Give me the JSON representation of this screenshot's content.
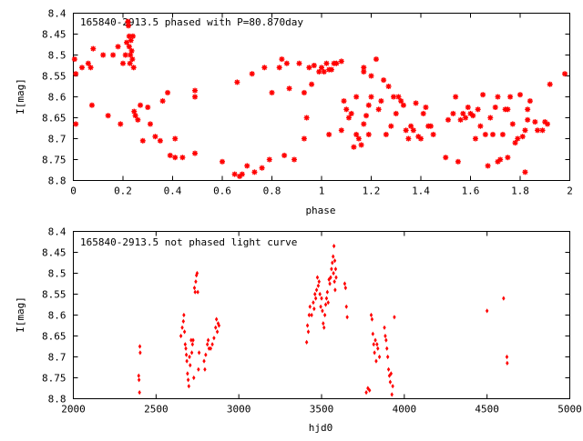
{
  "colors": {
    "points": "#ff0000",
    "axes": "#000000",
    "background": "#ffffff"
  },
  "chart_data": [
    {
      "type": "scatter",
      "title": "165840-2913.5 phased with P=80.870day",
      "xlabel": "phase",
      "ylabel": "I[mag]",
      "xlim": [
        0,
        2
      ],
      "ylim": [
        8.4,
        8.8
      ],
      "y_inverted": true,
      "grid": false,
      "xticks": [
        "0",
        "0.2",
        "0.4",
        "0.6",
        "0.8",
        "1",
        "1.2",
        "1.4",
        "1.6",
        "1.8",
        "2"
      ],
      "yticks": [
        "8.4",
        "8.45",
        "8.5",
        "8.55",
        "8.6",
        "8.65",
        "8.7",
        "8.75",
        "8.8"
      ],
      "marker": "star",
      "points": [
        [
          0.005,
          8.51
        ],
        [
          0.01,
          8.545
        ],
        [
          0.01,
          8.665
        ],
        [
          0.035,
          8.53
        ],
        [
          0.06,
          8.52
        ],
        [
          0.07,
          8.53
        ],
        [
          0.075,
          8.62
        ],
        [
          0.08,
          8.485
        ],
        [
          0.12,
          8.5
        ],
        [
          0.14,
          8.645
        ],
        [
          0.16,
          8.5
        ],
        [
          0.18,
          8.48
        ],
        [
          0.19,
          8.665
        ],
        [
          0.2,
          8.52
        ],
        [
          0.21,
          8.5
        ],
        [
          0.215,
          8.47
        ],
        [
          0.22,
          8.42
        ],
        [
          0.222,
          8.43
        ],
        [
          0.225,
          8.455
        ],
        [
          0.225,
          8.48
        ],
        [
          0.228,
          8.52
        ],
        [
          0.23,
          8.5
        ],
        [
          0.232,
          8.465
        ],
        [
          0.235,
          8.49
        ],
        [
          0.238,
          8.51
        ],
        [
          0.24,
          8.455
        ],
        [
          0.243,
          8.53
        ],
        [
          0.245,
          8.635
        ],
        [
          0.25,
          8.645
        ],
        [
          0.26,
          8.655
        ],
        [
          0.27,
          8.62
        ],
        [
          0.28,
          8.705
        ],
        [
          0.3,
          8.625
        ],
        [
          0.31,
          8.665
        ],
        [
          0.33,
          8.695
        ],
        [
          0.35,
          8.705
        ],
        [
          0.36,
          8.61
        ],
        [
          0.38,
          8.59
        ],
        [
          0.39,
          8.74
        ],
        [
          0.41,
          8.745
        ],
        [
          0.41,
          8.7
        ],
        [
          0.44,
          8.745
        ],
        [
          0.49,
          8.735
        ],
        [
          0.49,
          8.6
        ],
        [
          0.49,
          8.585
        ],
        [
          0.6,
          8.755
        ],
        [
          0.65,
          8.785
        ],
        [
          0.67,
          8.79
        ],
        [
          0.68,
          8.785
        ],
        [
          0.66,
          8.565
        ],
        [
          0.7,
          8.765
        ],
        [
          0.73,
          8.78
        ],
        [
          0.72,
          8.545
        ],
        [
          0.76,
          8.77
        ],
        [
          0.77,
          8.53
        ],
        [
          0.79,
          8.75
        ],
        [
          0.8,
          8.59
        ],
        [
          0.83,
          8.53
        ],
        [
          0.84,
          8.51
        ],
        [
          0.85,
          8.74
        ],
        [
          0.86,
          8.52
        ],
        [
          0.87,
          8.58
        ],
        [
          0.89,
          8.75
        ],
        [
          0.91,
          8.52
        ],
        [
          0.93,
          8.7
        ],
        [
          0.93,
          8.59
        ],
        [
          0.94,
          8.65
        ],
        [
          0.95,
          8.53
        ],
        [
          0.96,
          8.57
        ],
        [
          0.97,
          8.525
        ],
        [
          0.99,
          8.54
        ],
        [
          1.0,
          8.53
        ],
        [
          1.01,
          8.54
        ],
        [
          1.02,
          8.52
        ],
        [
          1.03,
          8.535
        ],
        [
          1.04,
          8.535
        ],
        [
          1.05,
          8.52
        ],
        [
          1.06,
          8.52
        ],
        [
          1.08,
          8.515
        ],
        [
          1.03,
          8.69
        ],
        [
          1.08,
          8.68
        ],
        [
          1.09,
          8.61
        ],
        [
          1.1,
          8.63
        ],
        [
          1.11,
          8.65
        ],
        [
          1.12,
          8.64
        ],
        [
          1.13,
          8.72
        ],
        [
          1.14,
          8.6
        ],
        [
          1.14,
          8.69
        ],
        [
          1.15,
          8.7
        ],
        [
          1.16,
          8.715
        ],
        [
          1.17,
          8.54
        ],
        [
          1.17,
          8.53
        ],
        [
          1.17,
          8.665
        ],
        [
          1.18,
          8.645
        ],
        [
          1.19,
          8.69
        ],
        [
          1.19,
          8.62
        ],
        [
          1.2,
          8.55
        ],
        [
          1.2,
          8.6
        ],
        [
          1.22,
          8.51
        ],
        [
          1.23,
          8.63
        ],
        [
          1.24,
          8.61
        ],
        [
          1.25,
          8.56
        ],
        [
          1.26,
          8.69
        ],
        [
          1.27,
          8.575
        ],
        [
          1.28,
          8.67
        ],
        [
          1.29,
          8.6
        ],
        [
          1.3,
          8.64
        ],
        [
          1.31,
          8.6
        ],
        [
          1.32,
          8.61
        ],
        [
          1.33,
          8.62
        ],
        [
          1.34,
          8.68
        ],
        [
          1.35,
          8.7
        ],
        [
          1.36,
          8.67
        ],
        [
          1.37,
          8.68
        ],
        [
          1.38,
          8.615
        ],
        [
          1.39,
          8.695
        ],
        [
          1.4,
          8.7
        ],
        [
          1.41,
          8.64
        ],
        [
          1.42,
          8.625
        ],
        [
          1.43,
          8.67
        ],
        [
          1.44,
          8.67
        ],
        [
          1.45,
          8.69
        ],
        [
          1.5,
          8.745
        ],
        [
          1.51,
          8.655
        ],
        [
          1.53,
          8.64
        ],
        [
          1.54,
          8.6
        ],
        [
          1.55,
          8.755
        ],
        [
          1.56,
          8.655
        ],
        [
          1.57,
          8.64
        ],
        [
          1.58,
          8.65
        ],
        [
          1.59,
          8.625
        ],
        [
          1.6,
          8.64
        ],
        [
          1.61,
          8.645
        ],
        [
          1.62,
          8.7
        ],
        [
          1.63,
          8.63
        ],
        [
          1.64,
          8.67
        ],
        [
          1.65,
          8.595
        ],
        [
          1.66,
          8.69
        ],
        [
          1.67,
          8.765
        ],
        [
          1.68,
          8.65
        ],
        [
          1.69,
          8.69
        ],
        [
          1.7,
          8.625
        ],
        [
          1.71,
          8.755
        ],
        [
          1.71,
          8.6
        ],
        [
          1.72,
          8.75
        ],
        [
          1.73,
          8.69
        ],
        [
          1.74,
          8.63
        ],
        [
          1.75,
          8.745
        ],
        [
          1.75,
          8.63
        ],
        [
          1.76,
          8.6
        ],
        [
          1.77,
          8.665
        ],
        [
          1.78,
          8.71
        ],
        [
          1.79,
          8.7
        ],
        [
          1.8,
          8.595
        ],
        [
          1.81,
          8.695
        ],
        [
          1.82,
          8.78
        ],
        [
          1.82,
          8.68
        ],
        [
          1.83,
          8.655
        ],
        [
          1.83,
          8.63
        ],
        [
          1.84,
          8.61
        ],
        [
          1.86,
          8.66
        ],
        [
          1.87,
          8.68
        ],
        [
          1.89,
          8.68
        ],
        [
          1.9,
          8.66
        ],
        [
          1.91,
          8.665
        ],
        [
          1.92,
          8.57
        ],
        [
          1.98,
          8.545
        ]
      ]
    },
    {
      "type": "scatter",
      "title": "165840-2913.5 not phased light curve",
      "xlabel": "hjd0",
      "ylabel": "I[mag]",
      "xlim": [
        2000,
        5000
      ],
      "ylim": [
        8.4,
        8.8
      ],
      "y_inverted": true,
      "grid": false,
      "xticks": [
        "2000",
        "2500",
        "3000",
        "3500",
        "4000",
        "4500",
        "5000"
      ],
      "yticks": [
        "8.4",
        "8.45",
        "8.5",
        "8.55",
        "8.6",
        "8.65",
        "8.7",
        "8.75",
        "8.8"
      ],
      "marker": "diamond",
      "points": [
        [
          2395,
          8.745
        ],
        [
          2397,
          8.755
        ],
        [
          2400,
          8.785
        ],
        [
          2402,
          8.675
        ],
        [
          2404,
          8.69
        ],
        [
          2650,
          8.65
        ],
        [
          2658,
          8.63
        ],
        [
          2665,
          8.615
        ],
        [
          2668,
          8.6
        ],
        [
          2672,
          8.64
        ],
        [
          2676,
          8.67
        ],
        [
          2680,
          8.68
        ],
        [
          2683,
          8.695
        ],
        [
          2686,
          8.71
        ],
        [
          2690,
          8.74
        ],
        [
          2694,
          8.755
        ],
        [
          2698,
          8.77
        ],
        [
          2702,
          8.7
        ],
        [
          2706,
          8.72
        ],
        [
          2712,
          8.66
        ],
        [
          2716,
          8.69
        ],
        [
          2720,
          8.67
        ],
        [
          2724,
          8.66
        ],
        [
          2728,
          8.75
        ],
        [
          2732,
          8.535
        ],
        [
          2736,
          8.545
        ],
        [
          2740,
          8.52
        ],
        [
          2744,
          8.505
        ],
        [
          2748,
          8.5
        ],
        [
          2752,
          8.545
        ],
        [
          2756,
          8.73
        ],
        [
          2760,
          8.69
        ],
        [
          2790,
          8.71
        ],
        [
          2795,
          8.73
        ],
        [
          2800,
          8.695
        ],
        [
          2810,
          8.67
        ],
        [
          2815,
          8.66
        ],
        [
          2820,
          8.68
        ],
        [
          2830,
          8.68
        ],
        [
          2840,
          8.67
        ],
        [
          2850,
          8.655
        ],
        [
          2860,
          8.63
        ],
        [
          2865,
          8.61
        ],
        [
          2870,
          8.64
        ],
        [
          2875,
          8.62
        ],
        [
          2880,
          8.625
        ],
        [
          3410,
          8.665
        ],
        [
          3415,
          8.625
        ],
        [
          3420,
          8.64
        ],
        [
          3425,
          8.6
        ],
        [
          3430,
          8.58
        ],
        [
          3440,
          8.6
        ],
        [
          3450,
          8.57
        ],
        [
          3455,
          8.585
        ],
        [
          3460,
          8.55
        ],
        [
          3465,
          8.56
        ],
        [
          3470,
          8.54
        ],
        [
          3475,
          8.51
        ],
        [
          3480,
          8.53
        ],
        [
          3485,
          8.52
        ],
        [
          3490,
          8.55
        ],
        [
          3495,
          8.58
        ],
        [
          3500,
          8.56
        ],
        [
          3505,
          8.59
        ],
        [
          3510,
          8.62
        ],
        [
          3515,
          8.63
        ],
        [
          3520,
          8.6
        ],
        [
          3525,
          8.575
        ],
        [
          3530,
          8.56
        ],
        [
          3535,
          8.545
        ],
        [
          3540,
          8.57
        ],
        [
          3545,
          8.515
        ],
        [
          3550,
          8.525
        ],
        [
          3555,
          8.51
        ],
        [
          3560,
          8.49
        ],
        [
          3565,
          8.475
        ],
        [
          3570,
          8.46
        ],
        [
          3572,
          8.5
        ],
        [
          3575,
          8.435
        ],
        [
          3578,
          8.52
        ],
        [
          3580,
          8.47
        ],
        [
          3582,
          8.54
        ],
        [
          3585,
          8.49
        ],
        [
          3588,
          8.51
        ],
        [
          3640,
          8.525
        ],
        [
          3645,
          8.535
        ],
        [
          3650,
          8.58
        ],
        [
          3655,
          8.605
        ],
        [
          3770,
          8.785
        ],
        [
          3780,
          8.775
        ],
        [
          3790,
          8.78
        ],
        [
          3800,
          8.6
        ],
        [
          3805,
          8.61
        ],
        [
          3810,
          8.645
        ],
        [
          3815,
          8.67
        ],
        [
          3820,
          8.69
        ],
        [
          3825,
          8.66
        ],
        [
          3830,
          8.71
        ],
        [
          3835,
          8.67
        ],
        [
          3840,
          8.68
        ],
        [
          3850,
          8.7
        ],
        [
          3880,
          8.63
        ],
        [
          3885,
          8.65
        ],
        [
          3890,
          8.66
        ],
        [
          3895,
          8.68
        ],
        [
          3900,
          8.7
        ],
        [
          3905,
          8.73
        ],
        [
          3910,
          8.745
        ],
        [
          3915,
          8.76
        ],
        [
          3920,
          8.74
        ],
        [
          3925,
          8.79
        ],
        [
          3930,
          8.77
        ],
        [
          3940,
          8.605
        ],
        [
          4500,
          8.59
        ],
        [
          4600,
          8.56
        ],
        [
          4620,
          8.7
        ],
        [
          4622,
          8.715
        ]
      ]
    }
  ]
}
